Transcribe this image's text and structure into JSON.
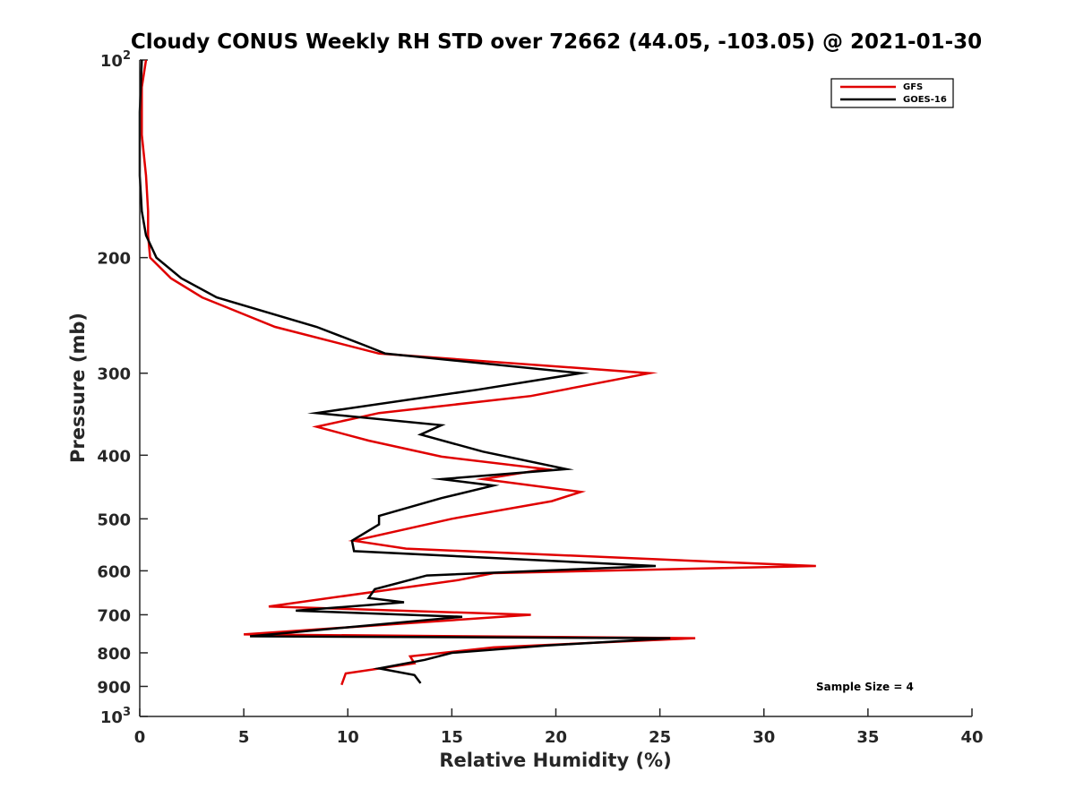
{
  "chart_data": {
    "type": "line",
    "title": "Cloudy CONUS Weekly RH STD over 72662 (44.05, -103.05) @ 2021-01-30",
    "xlabel": "Relative Humidity (%)",
    "ylabel": "Pressure (mb)",
    "xlim": [
      0,
      40
    ],
    "ylim": [
      100,
      1000
    ],
    "y_scale": "log",
    "y_reversed": true,
    "x_ticks": [
      0,
      5,
      10,
      15,
      20,
      25,
      30,
      35,
      40
    ],
    "x_tick_labels": [
      "0",
      "5",
      "10",
      "15",
      "20",
      "25",
      "30",
      "35",
      "40"
    ],
    "y_ticks": [
      100,
      200,
      300,
      400,
      500,
      600,
      700,
      800,
      900,
      1000
    ],
    "y_tick_labels": [
      {
        "base": "10",
        "exp": "2"
      },
      {
        "base": "200",
        "exp": ""
      },
      {
        "base": "300",
        "exp": ""
      },
      {
        "base": "400",
        "exp": ""
      },
      {
        "base": "500",
        "exp": ""
      },
      {
        "base": "600",
        "exp": ""
      },
      {
        "base": "700",
        "exp": ""
      },
      {
        "base": "800",
        "exp": ""
      },
      {
        "base": "900",
        "exp": ""
      },
      {
        "base": "10",
        "exp": "3"
      }
    ],
    "grid": false,
    "legend_position": "top-right",
    "annotation": "Sample Size = 4",
    "series": [
      {
        "name": "GFS",
        "color": "#e00000",
        "points": [
          [
            0.3,
            100
          ],
          [
            0.1,
            110
          ],
          [
            0.1,
            130
          ],
          [
            0.3,
            150
          ],
          [
            0.4,
            170
          ],
          [
            0.4,
            185
          ],
          [
            0.5,
            200
          ],
          [
            1.5,
            215
          ],
          [
            3.0,
            230
          ],
          [
            6.5,
            255
          ],
          [
            11.5,
            280
          ],
          [
            24.5,
            300
          ],
          [
            18.8,
            325
          ],
          [
            11.5,
            345
          ],
          [
            8.5,
            362
          ],
          [
            11.0,
            380
          ],
          [
            14.5,
            402
          ],
          [
            19.5,
            420
          ],
          [
            16.5,
            435
          ],
          [
            21.2,
            455
          ],
          [
            19.8,
            470
          ],
          [
            15.0,
            500
          ],
          [
            10.3,
            540
          ],
          [
            12.8,
            555
          ],
          [
            32.5,
            590
          ],
          [
            17.0,
            605
          ],
          [
            15.3,
            620
          ],
          [
            6.2,
            680
          ],
          [
            18.8,
            700
          ],
          [
            5.0,
            750
          ],
          [
            26.7,
            760
          ],
          [
            17.0,
            785
          ],
          [
            13.0,
            810
          ],
          [
            13.2,
            830
          ],
          [
            9.9,
            860
          ],
          [
            9.7,
            895
          ]
        ]
      },
      {
        "name": "GOES-16",
        "color": "#000000",
        "points": [
          [
            0.1,
            100
          ],
          [
            0.0,
            120
          ],
          [
            0.0,
            150
          ],
          [
            0.1,
            170
          ],
          [
            0.3,
            185
          ],
          [
            0.8,
            200
          ],
          [
            2.0,
            215
          ],
          [
            3.7,
            230
          ],
          [
            8.5,
            255
          ],
          [
            10.8,
            272
          ],
          [
            11.8,
            280
          ],
          [
            21.2,
            300
          ],
          [
            16.2,
            318
          ],
          [
            8.5,
            345
          ],
          [
            14.5,
            360
          ],
          [
            13.5,
            372
          ],
          [
            16.5,
            395
          ],
          [
            20.5,
            420
          ],
          [
            14.5,
            435
          ],
          [
            17.0,
            445
          ],
          [
            14.5,
            465
          ],
          [
            11.5,
            495
          ],
          [
            11.5,
            510
          ],
          [
            10.2,
            540
          ],
          [
            10.3,
            560
          ],
          [
            24.8,
            590
          ],
          [
            13.8,
            610
          ],
          [
            11.3,
            640
          ],
          [
            11.0,
            660
          ],
          [
            12.7,
            670
          ],
          [
            7.5,
            690
          ],
          [
            15.5,
            705
          ],
          [
            5.3,
            755
          ],
          [
            25.5,
            760
          ],
          [
            19.5,
            780
          ],
          [
            15.0,
            800
          ],
          [
            13.7,
            820
          ],
          [
            11.5,
            845
          ],
          [
            13.2,
            865
          ],
          [
            13.5,
            890
          ]
        ]
      }
    ]
  }
}
